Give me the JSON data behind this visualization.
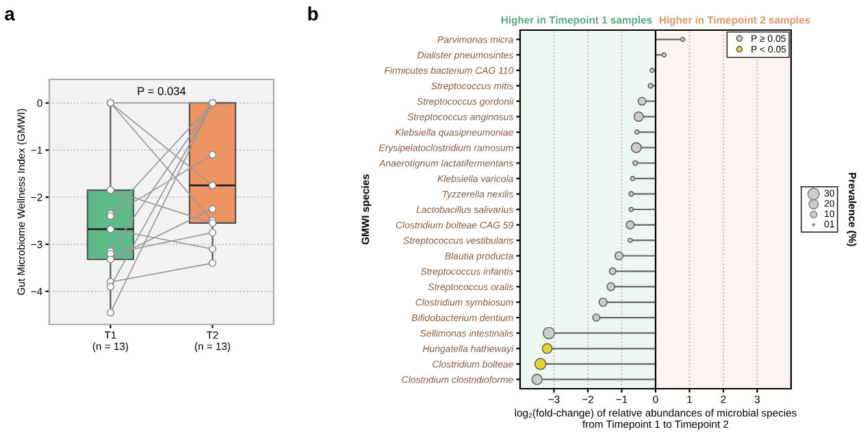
{
  "chart_data": [
    {
      "type": "box",
      "ylabel": "Gut Microbiome Wellness Index (GMWI)",
      "annotations": [
        "a",
        "P = 0.034"
      ],
      "categories": [
        "T1\n(n = 13)",
        "T2\n(n = 13)"
      ],
      "colors": [
        "#5fba8a",
        "#ee9463"
      ],
      "boxes": [
        {
          "low": -4.45,
          "q1": -3.32,
          "median": -2.68,
          "q3": -1.85,
          "high": 0
        },
        {
          "low": -3.4,
          "q1": -2.55,
          "median": -1.75,
          "q3": 0,
          "high": 0
        }
      ],
      "series": [
        {
          "type": "line",
          "color": "#999999",
          "values": [
            0,
            -1.75
          ]
        },
        {
          "type": "line",
          "color": "#999999",
          "values": [
            0,
            -2.5
          ]
        },
        {
          "type": "line",
          "color": "#999999",
          "values": [
            0,
            0
          ]
        },
        {
          "type": "line",
          "color": "#999999",
          "values": [
            -1.85,
            -2.55
          ]
        },
        {
          "type": "line",
          "color": "#999999",
          "values": [
            -2.35,
            0
          ]
        },
        {
          "type": "line",
          "color": "#999999",
          "values": [
            -2.4,
            -1.1
          ]
        },
        {
          "type": "line",
          "color": "#999999",
          "values": [
            -2.68,
            -3.1
          ]
        },
        {
          "type": "line",
          "color": "#999999",
          "values": [
            -3.15,
            0
          ]
        },
        {
          "type": "line",
          "color": "#999999",
          "values": [
            -3.2,
            -2.75
          ]
        },
        {
          "type": "line",
          "color": "#999999",
          "values": [
            -3.32,
            -2.25
          ]
        },
        {
          "type": "line",
          "color": "#999999",
          "values": [
            -3.8,
            -3.4
          ]
        },
        {
          "type": "line",
          "color": "#999999",
          "values": [
            -3.9,
            0
          ]
        },
        {
          "type": "line",
          "color": "#999999",
          "values": [
            -4.45,
            0
          ]
        }
      ],
      "marker": "circle",
      "ylim": [
        -4.7,
        0.5
      ],
      "yticks": [
        {
          "value": -4,
          "label": "−4"
        },
        {
          "value": -3,
          "label": "−3"
        },
        {
          "value": -2,
          "label": "−2"
        },
        {
          "value": -1,
          "label": "−1"
        },
        0
      ],
      "grid": "y"
    },
    {
      "type": "lollipop",
      "orientation": "horizontal",
      "annotations": [
        "b"
      ],
      "ylabel": "GMWI species",
      "xlabel": "log₂(fold-change) of relative abundances of microbial species\nfrom Timepoint 1 to Timepoint 2",
      "legend_title": "Prevalence (%)",
      "categories": [
        "Parvimonas micra",
        "Dialister pneumosintes",
        "Firmicutes bacterium CAG 110",
        "Streptococcus mitis",
        "Streptococcus gordonii",
        "Streptococcus anginosus",
        "Klebsiella quasipneumoniae",
        "Erysipelatoclostridium ramosum",
        "Anaerotignum lactatifermentans",
        "Klebsiella varicola",
        "Tyzzerella nexilis",
        "Lactobacillus salivarius",
        "Clostridium bolteae CAG 59",
        "Streptococcus vestibularis",
        "Blautia producta",
        "Streptococcus infantis",
        "Streptococcus oralis",
        "Clostridium symbiosum",
        "Bifidobacterium dentium",
        "Sellimonas intestinalis",
        "Hungatella hathewayi",
        "Clostridium bolteae",
        "Clostridium clostridioforme"
      ],
      "series": [
        {
          "name": "P ≥ 0.05",
          "color": "#cccccc",
          "values": [
            0.8,
            0.25,
            -0.1,
            -0.15,
            -0.4,
            -0.5,
            -0.55,
            -0.57,
            -0.6,
            -0.68,
            -0.72,
            -0.72,
            -0.75,
            -0.75,
            -1.08,
            -1.27,
            -1.32,
            -1.55,
            -1.75,
            -3.15,
            null,
            null,
            -3.5
          ],
          "sizes": [
            4,
            4,
            4,
            5,
            14,
            20,
            4,
            22,
            5,
            4,
            5,
            4,
            15,
            4,
            15,
            10,
            14,
            15,
            12,
            30,
            null,
            null,
            24
          ]
        },
        {
          "name": "P < 0.05",
          "color": "#e6d42c",
          "values": [
            null,
            null,
            null,
            null,
            null,
            null,
            null,
            null,
            null,
            null,
            null,
            null,
            null,
            null,
            null,
            null,
            null,
            null,
            null,
            null,
            -3.2,
            -3.4,
            null
          ],
          "sizes": [
            null,
            null,
            null,
            null,
            null,
            null,
            null,
            null,
            null,
            null,
            null,
            null,
            null,
            null,
            null,
            null,
            null,
            null,
            null,
            null,
            22,
            28,
            null
          ]
        }
      ],
      "size_legend": [
        30,
        20,
        10,
        {
          "value": 1,
          "label": "01"
        }
      ],
      "bands": [
        {
          "axis": "x",
          "from": -4,
          "to": 0,
          "label": "Higher in Timepoint 1 samples",
          "color": "#5aa87a"
        },
        {
          "axis": "x",
          "from": 0,
          "to": 4,
          "label": "Higher in Timepoint 2 samples",
          "color": "#e0956a"
        }
      ],
      "ref_lines": [
        {
          "axis": "x",
          "value": 0,
          "color": "#000000"
        }
      ],
      "xlim": [
        -4,
        4
      ],
      "xticks": [
        {
          "value": -3,
          "label": "−3"
        },
        {
          "value": -2,
          "label": "−2"
        },
        {
          "value": -1,
          "label": "−1"
        },
        0,
        1,
        2,
        3
      ],
      "grid": "x",
      "legend": "top right",
      "marker": "circle"
    }
  ]
}
